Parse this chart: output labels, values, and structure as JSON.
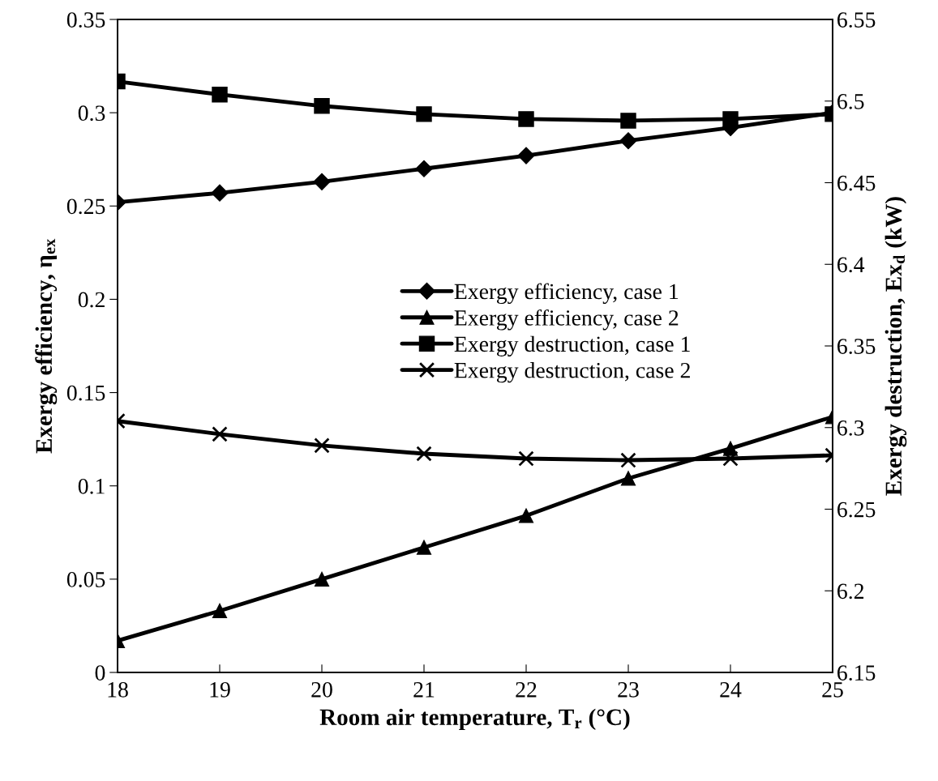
{
  "chart_data": {
    "type": "line",
    "xlabel": "Room air temperature, T$_{r}$ (°C)",
    "ylabel": "Exergy efficiency, η$_{ex}$",
    "y2label": "Exergy destruction, Ex$_{d}$ (kW)",
    "x": [
      18,
      19,
      20,
      21,
      22,
      23,
      24,
      25
    ],
    "xlim": [
      18,
      25
    ],
    "xticks": [
      18,
      19,
      20,
      21,
      22,
      23,
      24,
      25
    ],
    "ylim": [
      0,
      0.35
    ],
    "yticks": [
      0,
      0.05,
      0.1,
      0.15,
      0.2,
      0.25,
      0.3,
      0.35
    ],
    "y2lim": [
      6.15,
      6.55
    ],
    "y2ticks": [
      6.15,
      6.2,
      6.25,
      6.3,
      6.35,
      6.4,
      6.45,
      6.5,
      6.55
    ],
    "legend": "center",
    "grid": false,
    "line_style": "solid",
    "series": [
      {
        "name": "Exergy efficiency, case 1",
        "color": "#000000",
        "marker": "diamond",
        "values": [
          0.252,
          0.257,
          0.263,
          0.27,
          0.277,
          0.285,
          0.292,
          0.3
        ]
      },
      {
        "name": "Exergy efficiency, case 2",
        "color": "#000000",
        "marker": "triangle",
        "values": [
          0.017,
          0.033,
          0.05,
          0.067,
          0.084,
          0.104,
          0.12,
          0.137
        ]
      },
      {
        "name": "Exergy destruction, case 1",
        "color": "#000000",
        "marker": "square",
        "axis": "y2",
        "values": [
          6.512,
          6.504,
          6.497,
          6.492,
          6.489,
          6.488,
          6.489,
          6.492
        ]
      },
      {
        "name": "Exergy destruction, case 2",
        "color": "#000000",
        "marker": "cross",
        "axis": "y2",
        "values": [
          6.304,
          6.296,
          6.289,
          6.284,
          6.281,
          6.28,
          6.281,
          6.283
        ]
      }
    ]
  }
}
